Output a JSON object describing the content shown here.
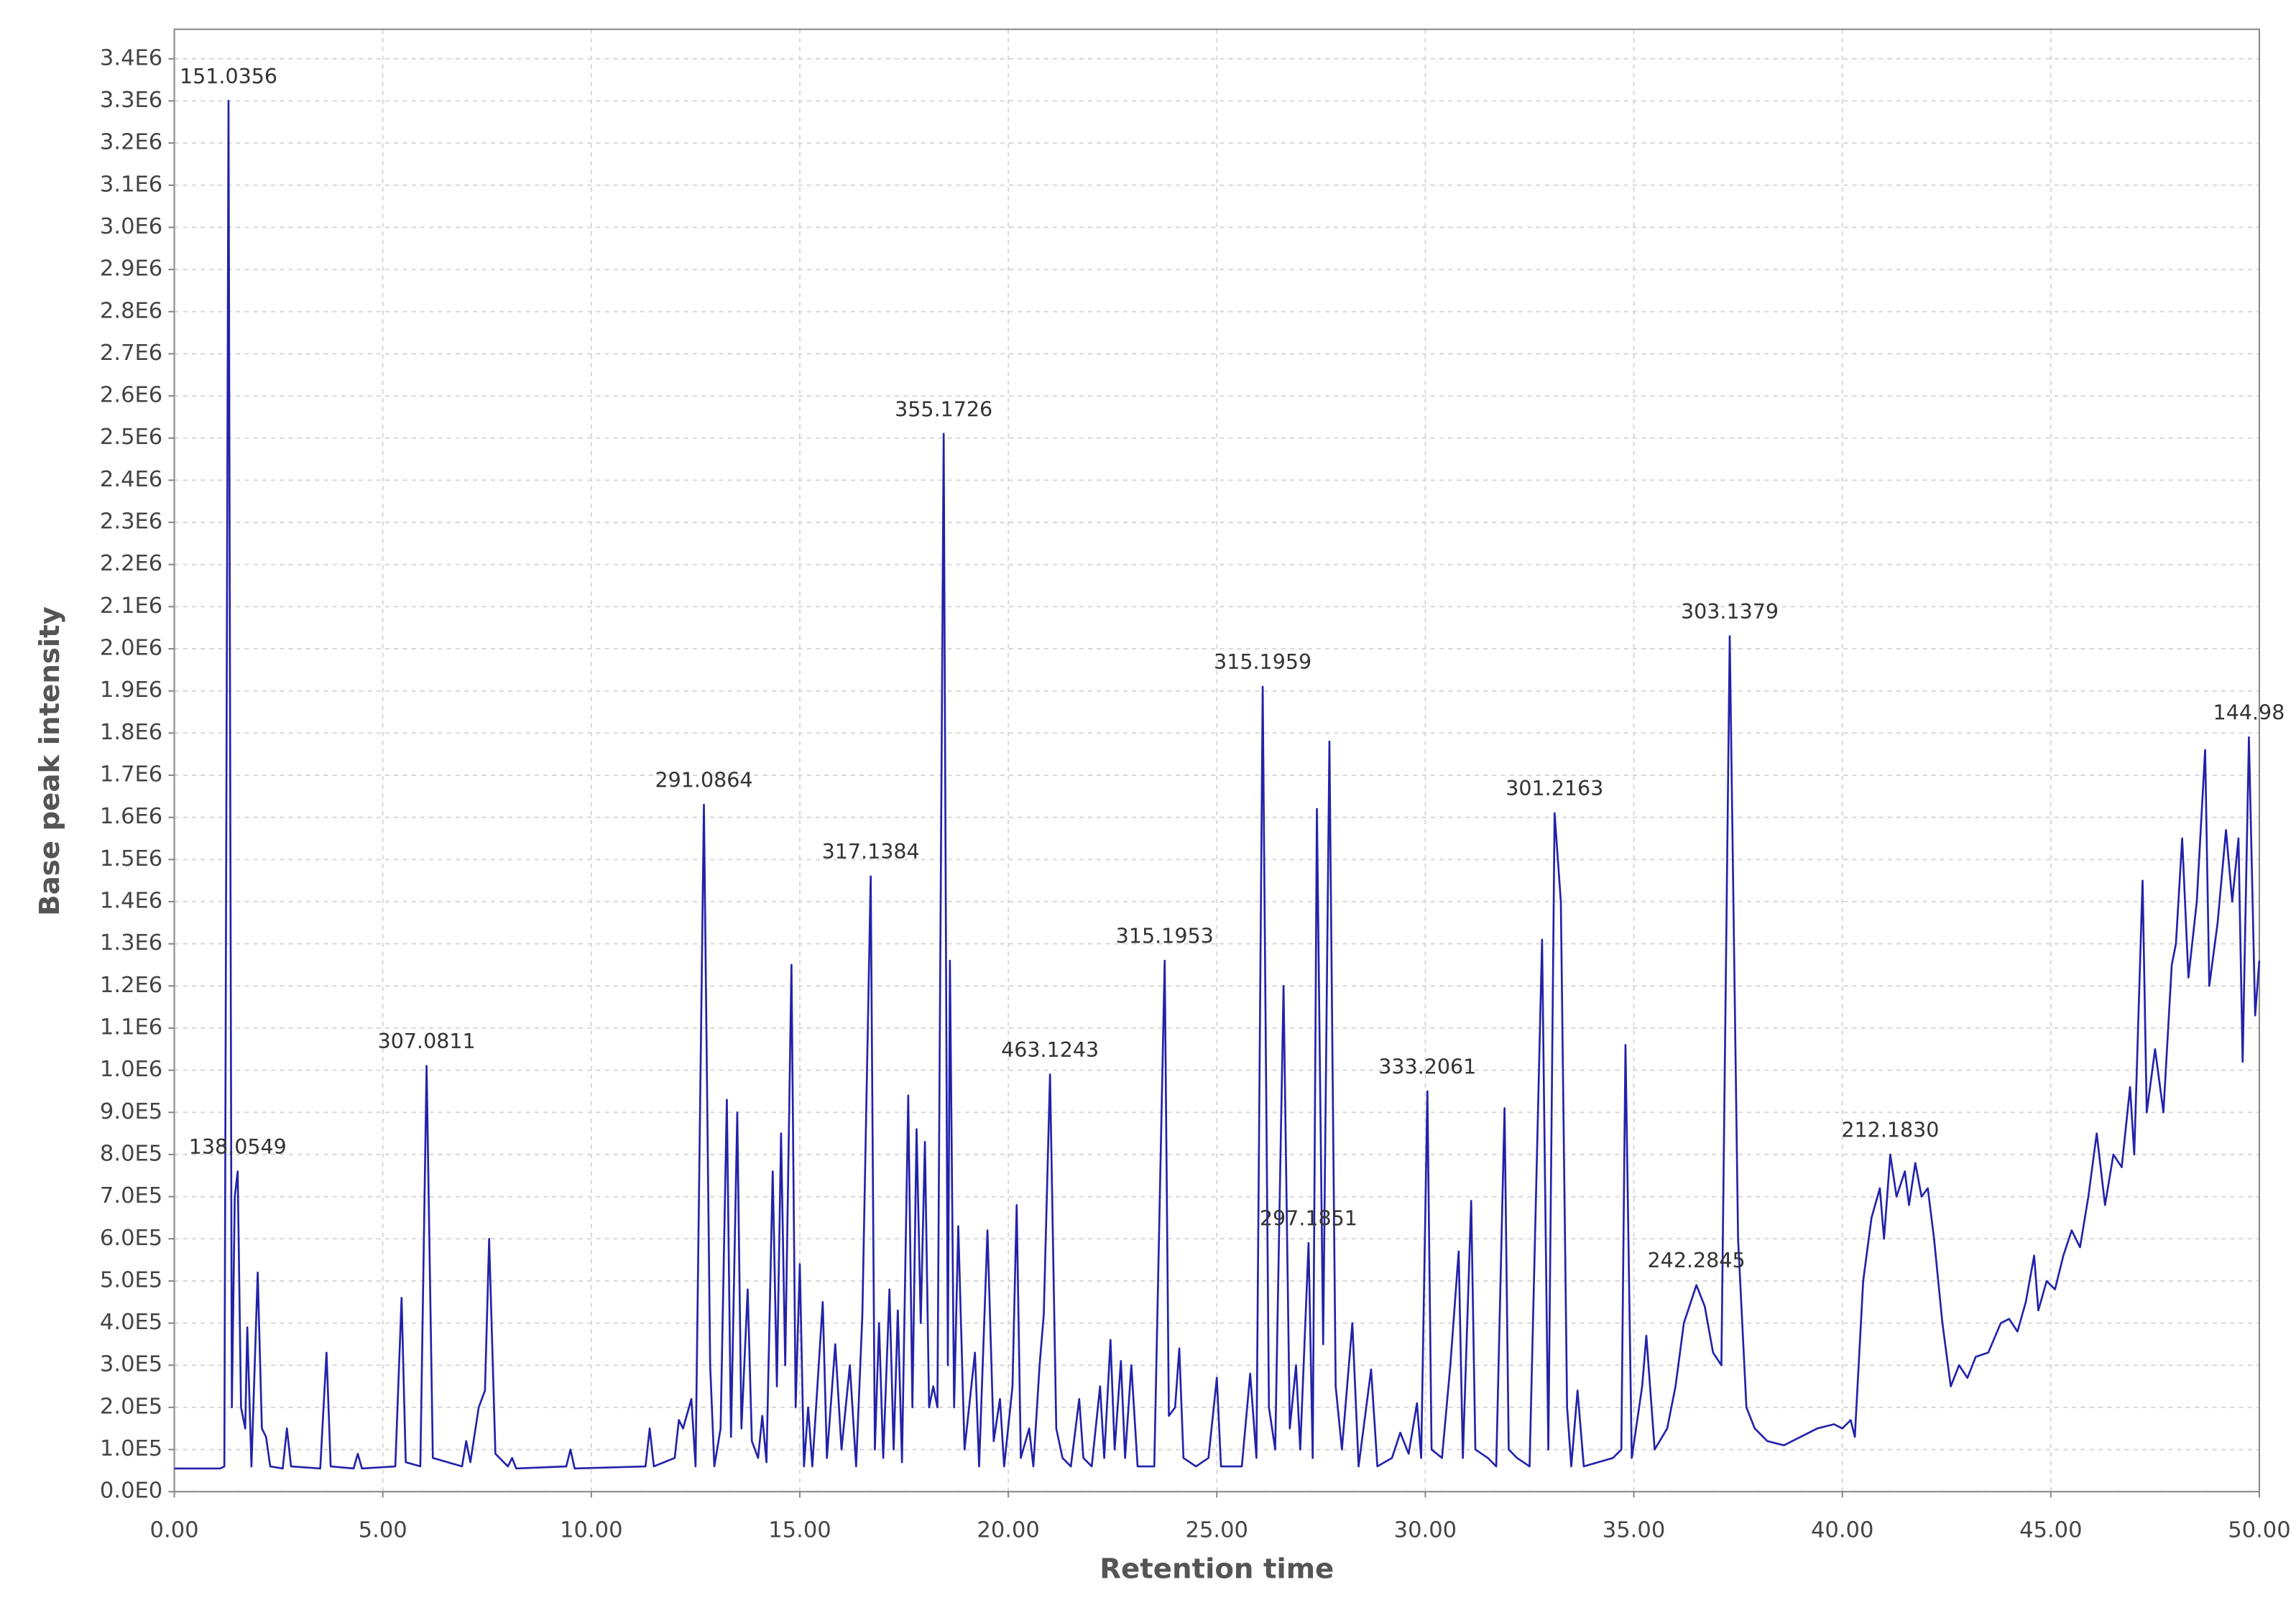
{
  "chart_data": {
    "type": "line",
    "xlabel": "Retention time",
    "ylabel": "Base peak intensity",
    "color": "#2222aa",
    "grid": true,
    "xlim": [
      0,
      50
    ],
    "ylim": [
      0,
      3470000
    ],
    "xticks": [
      {
        "value": 0,
        "label": "0.00"
      },
      {
        "value": 5,
        "label": "5.00"
      },
      {
        "value": 10,
        "label": "10.00"
      },
      {
        "value": 15,
        "label": "15.00"
      },
      {
        "value": 20,
        "label": "20.00"
      },
      {
        "value": 25,
        "label": "25.00"
      },
      {
        "value": 30,
        "label": "30.00"
      },
      {
        "value": 35,
        "label": "35.00"
      },
      {
        "value": 40,
        "label": "40.00"
      },
      {
        "value": 45,
        "label": "45.00"
      },
      {
        "value": 50,
        "label": "50.00"
      }
    ],
    "yticks": [
      {
        "value": 0,
        "label": "0.0E0"
      },
      {
        "value": 100000,
        "label": "1.0E5"
      },
      {
        "value": 200000,
        "label": "2.0E5"
      },
      {
        "value": 300000,
        "label": "3.0E5"
      },
      {
        "value": 400000,
        "label": "4.0E5"
      },
      {
        "value": 500000,
        "label": "5.0E5"
      },
      {
        "value": 600000,
        "label": "6.0E5"
      },
      {
        "value": 700000,
        "label": "7.0E5"
      },
      {
        "value": 800000,
        "label": "8.0E5"
      },
      {
        "value": 900000,
        "label": "9.0E5"
      },
      {
        "value": 1000000,
        "label": "1.0E6"
      },
      {
        "value": 1100000,
        "label": "1.1E6"
      },
      {
        "value": 1200000,
        "label": "1.2E6"
      },
      {
        "value": 1300000,
        "label": "1.3E6"
      },
      {
        "value": 1400000,
        "label": "1.4E6"
      },
      {
        "value": 1500000,
        "label": "1.5E6"
      },
      {
        "value": 1600000,
        "label": "1.6E6"
      },
      {
        "value": 1700000,
        "label": "1.7E6"
      },
      {
        "value": 1800000,
        "label": "1.8E6"
      },
      {
        "value": 1900000,
        "label": "1.9E6"
      },
      {
        "value": 2000000,
        "label": "2.0E6"
      },
      {
        "value": 2100000,
        "label": "2.1E6"
      },
      {
        "value": 2200000,
        "label": "2.2E6"
      },
      {
        "value": 2300000,
        "label": "2.3E6"
      },
      {
        "value": 2400000,
        "label": "2.4E6"
      },
      {
        "value": 2500000,
        "label": "2.5E6"
      },
      {
        "value": 2600000,
        "label": "2.6E6"
      },
      {
        "value": 2700000,
        "label": "2.7E6"
      },
      {
        "value": 2800000,
        "label": "2.8E6"
      },
      {
        "value": 2900000,
        "label": "2.9E6"
      },
      {
        "value": 3000000,
        "label": "3.0E6"
      },
      {
        "value": 3100000,
        "label": "3.1E6"
      },
      {
        "value": 3200000,
        "label": "3.2E6"
      },
      {
        "value": 3300000,
        "label": "3.3E6"
      },
      {
        "value": 3400000,
        "label": "3.4E6"
      }
    ],
    "annotations": [
      {
        "text": "151.0356",
        "x": 1.3
      },
      {
        "text": "138.0549",
        "x": 1.52
      },
      {
        "text": "307.0811",
        "x": 6.05
      },
      {
        "text": "291.0864",
        "x": 12.7
      },
      {
        "text": "317.1384",
        "x": 16.7
      },
      {
        "text": "355.1726",
        "x": 18.45
      },
      {
        "text": "463.1243",
        "x": 21.0
      },
      {
        "text": "315.1953",
        "x": 23.75
      },
      {
        "text": "315.1959",
        "x": 26.1
      },
      {
        "text": "297.1851",
        "x": 27.2
      },
      {
        "text": "333.2061",
        "x": 30.05
      },
      {
        "text": "301.2163",
        "x": 33.1
      },
      {
        "text": "242.2845",
        "x": 36.5
      },
      {
        "text": "303.1379",
        "x": 37.3
      },
      {
        "text": "212.1830",
        "x": 41.15
      },
      {
        "text": "144.98",
        "x": 49.75
      }
    ],
    "x": [
      0,
      1.1,
      1.2,
      1.3,
      1.38,
      1.45,
      1.52,
      1.6,
      1.7,
      1.75,
      1.85,
      2.0,
      2.1,
      2.2,
      2.3,
      2.6,
      2.7,
      2.8,
      3.5,
      3.65,
      3.75,
      4.3,
      4.4,
      4.5,
      5.3,
      5.45,
      5.55,
      5.9,
      6.05,
      6.2,
      6.9,
      7.0,
      7.1,
      7.3,
      7.45,
      7.55,
      7.7,
      8.0,
      8.1,
      8.2,
      9.4,
      9.5,
      9.6,
      11.3,
      11.4,
      11.5,
      12.0,
      12.1,
      12.2,
      12.4,
      12.5,
      12.7,
      12.85,
      12.95,
      13.1,
      13.25,
      13.35,
      13.5,
      13.6,
      13.75,
      13.85,
      14.0,
      14.1,
      14.2,
      14.35,
      14.45,
      14.55,
      14.65,
      14.8,
      14.9,
      15.0,
      15.1,
      15.2,
      15.3,
      15.55,
      15.65,
      15.85,
      16.0,
      16.2,
      16.35,
      16.5,
      16.7,
      16.8,
      16.9,
      17.0,
      17.15,
      17.25,
      17.35,
      17.45,
      17.6,
      17.7,
      17.8,
      17.9,
      18.0,
      18.1,
      18.2,
      18.3,
      18.45,
      18.55,
      18.6,
      18.7,
      18.8,
      18.95,
      19.2,
      19.3,
      19.5,
      19.65,
      19.8,
      19.9,
      20.1,
      20.2,
      20.3,
      20.5,
      20.6,
      20.75,
      20.85,
      21.0,
      21.15,
      21.3,
      21.5,
      21.7,
      21.8,
      22.0,
      22.2,
      22.3,
      22.45,
      22.55,
      22.7,
      22.8,
      22.95,
      23.1,
      23.5,
      23.75,
      23.85,
      24.0,
      24.1,
      24.2,
      24.5,
      24.8,
      25.0,
      25.1,
      25.6,
      25.8,
      25.95,
      26.1,
      26.25,
      26.4,
      26.6,
      26.75,
      26.9,
      27.0,
      27.2,
      27.3,
      27.4,
      27.55,
      27.7,
      27.85,
      28.0,
      28.25,
      28.4,
      28.7,
      28.85,
      29.2,
      29.4,
      29.6,
      29.8,
      29.9,
      30.05,
      30.15,
      30.4,
      30.6,
      30.8,
      30.9,
      31.1,
      31.2,
      31.5,
      31.7,
      31.9,
      32.0,
      32.2,
      32.5,
      32.8,
      32.95,
      33.1,
      33.25,
      33.4,
      33.5,
      33.65,
      33.8,
      34.5,
      34.7,
      34.8,
      34.95,
      35.2,
      35.3,
      35.5,
      35.8,
      36.0,
      36.2,
      36.5,
      36.7,
      36.9,
      37.1,
      37.3,
      37.5,
      37.7,
      37.9,
      38.2,
      38.6,
      39.0,
      39.4,
      39.8,
      40.0,
      40.2,
      40.3,
      40.5,
      40.7,
      40.9,
      41.0,
      41.15,
      41.3,
      41.5,
      41.6,
      41.75,
      41.9,
      42.05,
      42.2,
      42.4,
      42.6,
      42.8,
      43.0,
      43.2,
      43.5,
      43.8,
      44.0,
      44.2,
      44.4,
      44.6,
      44.7,
      44.9,
      45.1,
      45.3,
      45.5,
      45.7,
      45.9,
      46.1,
      46.3,
      46.5,
      46.7,
      46.9,
      47.0,
      47.2,
      47.3,
      47.5,
      47.7,
      47.9,
      48.0,
      48.15,
      48.3,
      48.5,
      48.7,
      48.8,
      49.0,
      49.2,
      49.35,
      49.5,
      49.6,
      49.75,
      49.9,
      50.0
    ],
    "values": [
      55000,
      55000,
      60000,
      3300000,
      200000,
      700000,
      760000,
      200000,
      150000,
      390000,
      60000,
      520000,
      150000,
      130000,
      60000,
      55000,
      150000,
      60000,
      55000,
      330000,
      60000,
      55000,
      90000,
      55000,
      60000,
      460000,
      70000,
      60000,
      1010000,
      80000,
      60000,
      120000,
      70000,
      200000,
      240000,
      600000,
      90000,
      60000,
      80000,
      55000,
      60000,
      100000,
      55000,
      60000,
      150000,
      60000,
      80000,
      170000,
      150000,
      220000,
      60000,
      1630000,
      300000,
      60000,
      150000,
      930000,
      130000,
      900000,
      150000,
      480000,
      120000,
      80000,
      180000,
      70000,
      760000,
      250000,
      850000,
      300000,
      1250000,
      200000,
      540000,
      60000,
      200000,
      60000,
      450000,
      80000,
      350000,
      100000,
      300000,
      60000,
      420000,
      1460000,
      100000,
      400000,
      80000,
      480000,
      100000,
      430000,
      70000,
      940000,
      200000,
      860000,
      400000,
      830000,
      200000,
      250000,
      200000,
      2510000,
      300000,
      1260000,
      200000,
      630000,
      100000,
      330000,
      60000,
      620000,
      120000,
      220000,
      60000,
      250000,
      680000,
      80000,
      150000,
      60000,
      300000,
      420000,
      990000,
      150000,
      80000,
      60000,
      220000,
      80000,
      60000,
      250000,
      80000,
      360000,
      100000,
      310000,
      80000,
      300000,
      60000,
      60000,
      1260000,
      180000,
      200000,
      340000,
      80000,
      60000,
      80000,
      270000,
      60000,
      60000,
      280000,
      80000,
      1910000,
      200000,
      100000,
      1200000,
      150000,
      300000,
      100000,
      590000,
      80000,
      1620000,
      350000,
      1780000,
      250000,
      100000,
      400000,
      60000,
      290000,
      60000,
      80000,
      140000,
      90000,
      210000,
      80000,
      950000,
      100000,
      80000,
      300000,
      570000,
      80000,
      690000,
      100000,
      80000,
      60000,
      910000,
      100000,
      80000,
      60000,
      1310000,
      100000,
      1610000,
      1400000,
      200000,
      60000,
      240000,
      60000,
      80000,
      100000,
      1060000,
      80000,
      250000,
      370000,
      100000,
      150000,
      250000,
      400000,
      490000,
      440000,
      330000,
      300000,
      2030000,
      600000,
      200000,
      150000,
      120000,
      110000,
      130000,
      150000,
      160000,
      150000,
      170000,
      130000,
      500000,
      650000,
      720000,
      600000,
      800000,
      700000,
      760000,
      680000,
      780000,
      700000,
      720000,
      600000,
      400000,
      250000,
      300000,
      270000,
      320000,
      330000,
      400000,
      410000,
      380000,
      450000,
      560000,
      430000,
      500000,
      480000,
      560000,
      620000,
      580000,
      700000,
      850000,
      680000,
      800000,
      770000,
      960000,
      800000,
      1450000,
      900000,
      1050000,
      900000,
      1250000,
      1300000,
      1550000,
      1220000,
      1400000,
      1760000,
      1200000,
      1350000,
      1570000,
      1400000,
      1550000,
      1020000,
      1790000,
      1130000,
      1260000
    ]
  }
}
